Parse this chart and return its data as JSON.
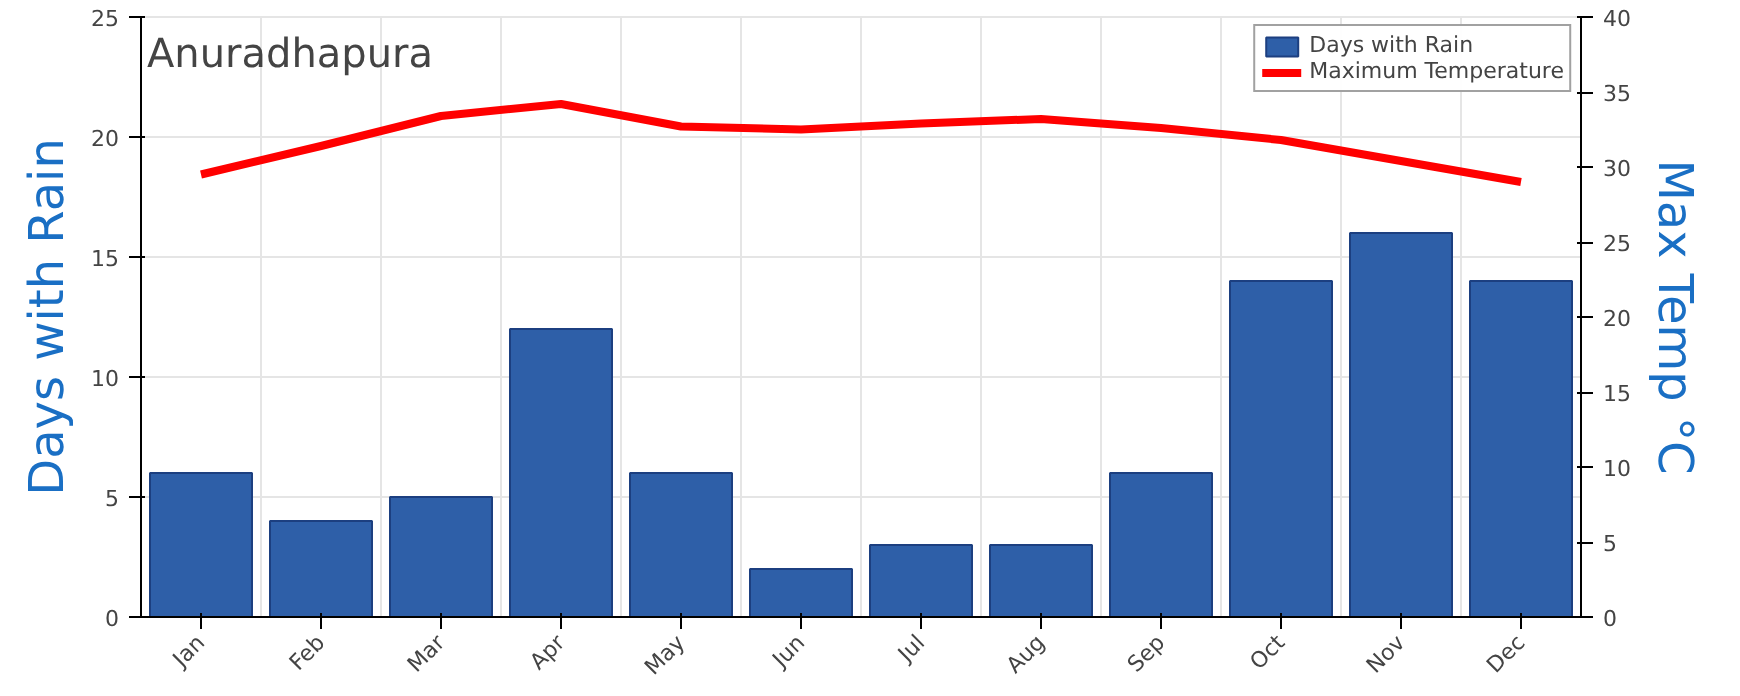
{
  "chart_data": {
    "type": "bar",
    "title": "Anuradhapura",
    "ylabel": "Days with Rain",
    "y2label": "Max Temp °C",
    "categories": [
      "Jan",
      "Feb",
      "Mar",
      "Apr",
      "May",
      "Jun",
      "Jul",
      "Aug",
      "Sep",
      "Oct",
      "Nov",
      "Dec"
    ],
    "series": [
      {
        "name": "Days with Rain",
        "color": "#2e5fa8",
        "values": [
          6,
          4,
          5,
          12,
          6,
          2,
          3,
          3,
          6,
          14,
          16,
          14
        ]
      },
      {
        "name": "Maximum Temperature",
        "type": "line",
        "axis": "y2",
        "color": "#ff0000",
        "values": [
          29.5,
          31.4,
          33.4,
          34.2,
          32.7,
          32.5,
          32.9,
          33.2,
          32.6,
          31.8,
          30.4,
          29
        ]
      }
    ],
    "ylim": [
      0,
      25
    ],
    "yticks": [
      0,
      5,
      10,
      15,
      20,
      25
    ],
    "y2lim": [
      0,
      40
    ],
    "y2ticks": [
      0,
      5,
      10,
      15,
      20,
      25,
      30,
      35,
      40
    ],
    "grid": true,
    "legend": "top right"
  }
}
